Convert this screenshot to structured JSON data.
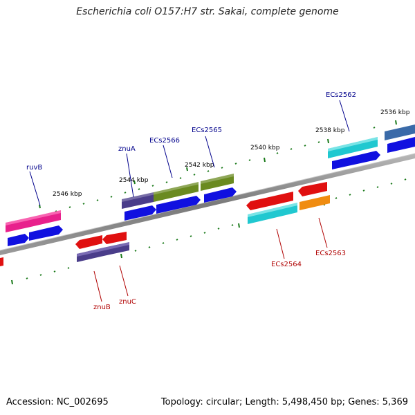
{
  "title": "Escherichia coli O157:H7 str. Sakai, complete genome",
  "footer": {
    "accession": "Accession: NC_002695",
    "topology": "Topology: circular",
    "length": "Length: 5,498,450 bp",
    "genes": "Genes: 5,369"
  },
  "scale_labels": [
    "2536 kbp",
    "2538 kbp",
    "2540 kbp",
    "2542 kbp",
    "2544 kbp",
    "2546 kbp"
  ],
  "gene_labels": {
    "forward": [
      "ruvB",
      "znuA",
      "ECs2566",
      "ECs2565",
      "ECs2562"
    ],
    "reverse": [
      "znuB",
      "znuC",
      "ECs2564",
      "ECs2563"
    ]
  },
  "colors": {
    "backbone": "#8a8a8a",
    "ticks": "#1a7a1a",
    "forward_label": "#00008b",
    "reverse_label": "#b00000",
    "blue_cds": "#1010e0",
    "red_cds": "#e01010",
    "pink_gene": "#e8208c",
    "purple_gene": "#4a3d8a",
    "olive_gene": "#6a8a20",
    "cyan_gene": "#20c8d0",
    "orange_gene": "#f08c10",
    "steel_gene": "#3a6aa8"
  }
}
